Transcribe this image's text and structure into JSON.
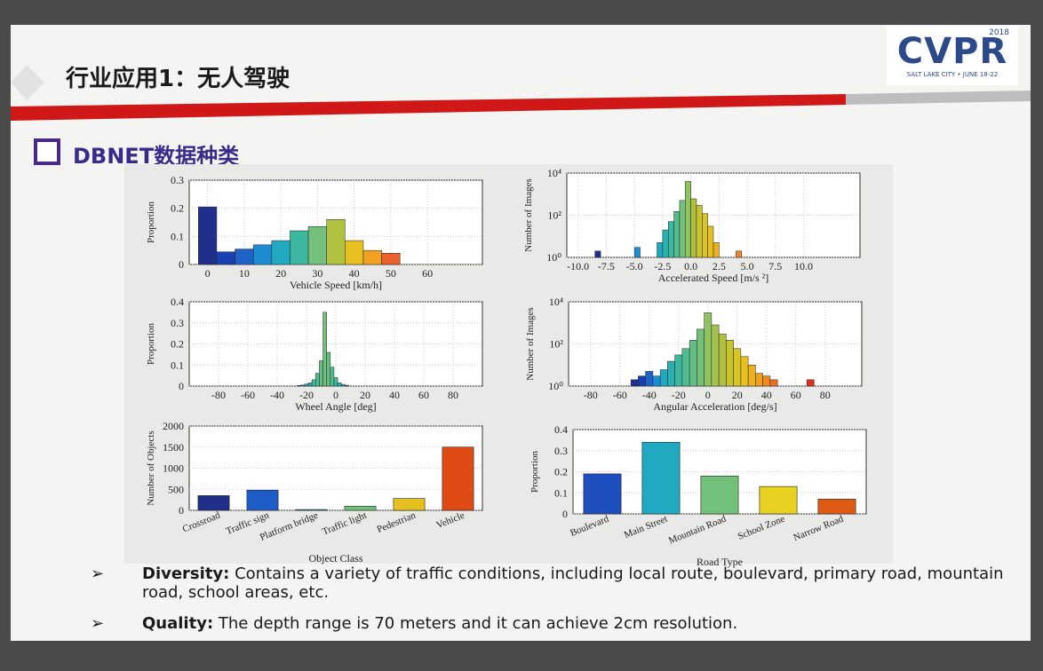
{
  "header": {
    "title": "行业应用1：无人驾驶",
    "logo": "CVPR",
    "logo_year": "2018",
    "logo_caption": "SALT LAKE CITY • JUNE 18-22"
  },
  "section": {
    "title": "DBNET数据种类"
  },
  "chart_data": [
    {
      "type": "bar",
      "xlabel": "Vehicle Speed [km/h]",
      "ylabel": "Proportion",
      "x": [
        0,
        5,
        10,
        15,
        20,
        25,
        30,
        35,
        40,
        45,
        50
      ],
      "values": [
        0.205,
        0.045,
        0.055,
        0.07,
        0.085,
        0.12,
        0.135,
        0.16,
        0.085,
        0.05,
        0.04
      ],
      "colors": [
        "#1f2f8a",
        "#1a3fb0",
        "#1e64c8",
        "#1e8cd2",
        "#20a9c0",
        "#3cb8a0",
        "#72c07a",
        "#b0c040",
        "#e6c020",
        "#f2a020",
        "#e8602a"
      ],
      "xlim": [
        -5,
        75
      ],
      "xticks": [
        0,
        10,
        20,
        30,
        40,
        50,
        60
      ],
      "ylim": [
        0,
        0.3
      ],
      "yticks": [
        0,
        0.1,
        0.2,
        0.3
      ],
      "grid": true,
      "log_scale": false
    },
    {
      "type": "bar",
      "xlabel": "Accelerated Speed [m/s ²]",
      "ylabel": "Number of Images",
      "x": [
        -8.25,
        -4.75,
        -2.75,
        -2.25,
        -1.75,
        -1.25,
        -0.75,
        -0.25,
        0.25,
        0.75,
        1.25,
        1.75,
        2.25,
        4.25
      ],
      "values": [
        2,
        3,
        5,
        20,
        50,
        150,
        500,
        4000,
        600,
        300,
        120,
        30,
        5,
        2
      ],
      "colors": [
        "#1f2f8a",
        "#1e8cd2",
        "#20a9c0",
        "#2cb0b0",
        "#3cb8a0",
        "#52bc90",
        "#72c07a",
        "#90c460",
        "#b0c040",
        "#c8c430",
        "#d8c428",
        "#e6c020",
        "#ecb020",
        "#f08a20"
      ],
      "xlim": [
        -11,
        15
      ],
      "xticks": [
        {
          "value": -10,
          "label": "-10.0"
        },
        -7.5,
        {
          "value": -5,
          "label": "-5.0"
        },
        -2.5,
        {
          "value": 0,
          "label": "0.0"
        },
        2.5,
        {
          "value": 5,
          "label": "5.0"
        },
        7.5,
        {
          "value": 10,
          "label": "10.0"
        }
      ],
      "ylim": [
        1,
        10000
      ],
      "yticks": [
        {
          "value": 1,
          "label": "10⁰"
        },
        {
          "value": 100,
          "label": "10²"
        },
        {
          "value": 10000,
          "label": "10⁴"
        }
      ],
      "grid": true,
      "log_scale": true
    },
    {
      "type": "bar",
      "xlabel": "Wheel Angle [deg]",
      "ylabel": "Proportion",
      "x": [
        -25,
        -22.5,
        -20,
        -17.5,
        -15,
        -12.5,
        -10,
        -7.5,
        -5,
        -2.5,
        0,
        2.5,
        5,
        7.5
      ],
      "values": [
        0.003,
        0.005,
        0.01,
        0.015,
        0.03,
        0.06,
        0.12,
        0.35,
        0.16,
        0.09,
        0.04,
        0.015,
        0.008,
        0.004
      ],
      "colors": [
        "#1e64c8",
        "#1e8cd2",
        "#20a9c0",
        "#2cb0b0",
        "#3cb8a0",
        "#52bc90",
        "#62be84",
        "#72c07a",
        "#62be84",
        "#52bc90",
        "#3cb8a0",
        "#2cb0b0",
        "#20a9c0",
        "#1e8cd2"
      ],
      "xlim": [
        -100,
        100
      ],
      "xticks": [
        -80,
        -60,
        -40,
        -20,
        0,
        20,
        40,
        60,
        80
      ],
      "ylim": [
        0,
        0.4
      ],
      "yticks": [
        0,
        0.1,
        0.2,
        0.3,
        0.4
      ],
      "grid": true,
      "log_scale": false
    },
    {
      "type": "bar",
      "xlabel": "Angular Acceleration [deg/s]",
      "ylabel": "Number of Images",
      "x": [
        -50,
        -45,
        -40,
        -35,
        -30,
        -25,
        -20,
        -15,
        -10,
        -5,
        0,
        5,
        10,
        15,
        20,
        25,
        30,
        35,
        40,
        45,
        70
      ],
      "values": [
        2,
        3,
        5,
        3,
        6,
        15,
        30,
        60,
        150,
        500,
        3000,
        800,
        300,
        150,
        60,
        25,
        10,
        4,
        3,
        2,
        2
      ],
      "colors": [
        "#1f2f8a",
        "#1a3fb0",
        "#1e64c8",
        "#1e8cd2",
        "#20a9c0",
        "#2cb0b0",
        "#3cb8a0",
        "#52bc90",
        "#62be84",
        "#72c07a",
        "#90c460",
        "#a4c250",
        "#b0c040",
        "#c8c430",
        "#d8c428",
        "#e6c020",
        "#ecb020",
        "#f0a020",
        "#f08a20",
        "#ec7020",
        "#d83020"
      ],
      "xlim": [
        -95,
        105
      ],
      "xticks": [
        -80,
        -60,
        -40,
        -20,
        0,
        20,
        40,
        60,
        80
      ],
      "ylim": [
        1,
        10000
      ],
      "yticks": [
        {
          "value": 1,
          "label": "10⁰"
        },
        {
          "value": 100,
          "label": "10²"
        },
        {
          "value": 10000,
          "label": "10⁴"
        }
      ],
      "grid": true,
      "log_scale": true
    },
    {
      "type": "bar",
      "xlabel": "Object Class",
      "ylabel": "Number of Objects",
      "categories": [
        "Crossroad",
        "Traffic sign",
        "Platform bridge",
        "Traffic light",
        "Pedestrian",
        "Vehicle"
      ],
      "values": [
        350,
        480,
        20,
        100,
        280,
        1500
      ],
      "colors": [
        "#1f2f8a",
        "#1e5cc8",
        "#20a9c0",
        "#72c07a",
        "#e6c020",
        "#e04a14"
      ],
      "ylim": [
        0,
        2000
      ],
      "yticks": [
        0,
        500,
        1000,
        1500,
        2000
      ],
      "grid": true,
      "log_scale": false
    },
    {
      "type": "bar",
      "xlabel": "Road Type",
      "ylabel": "Proportion",
      "categories": [
        "Boulevard",
        "Main Street",
        "Mountain Road",
        "School Zone",
        "Narrow Road"
      ],
      "values": [
        0.19,
        0.34,
        0.18,
        0.13,
        0.07
      ],
      "colors": [
        "#1f4fbf",
        "#20a9c0",
        "#72c07a",
        "#e6d020",
        "#e05a14"
      ],
      "ylim": [
        0,
        0.4
      ],
      "yticks": [
        0,
        0.1,
        0.2,
        0.3,
        0.4
      ],
      "grid": true,
      "log_scale": false
    }
  ],
  "bullets": [
    {
      "marker": "➢",
      "label": "Diversity:",
      "text": "Contains a variety of traffic conditions, including local route, boulevard, primary road, mountain road, school areas, etc."
    },
    {
      "marker": "➢",
      "label": "Quality:",
      "text": "The depth range is 70 meters and it can achieve 2cm resolution."
    }
  ]
}
